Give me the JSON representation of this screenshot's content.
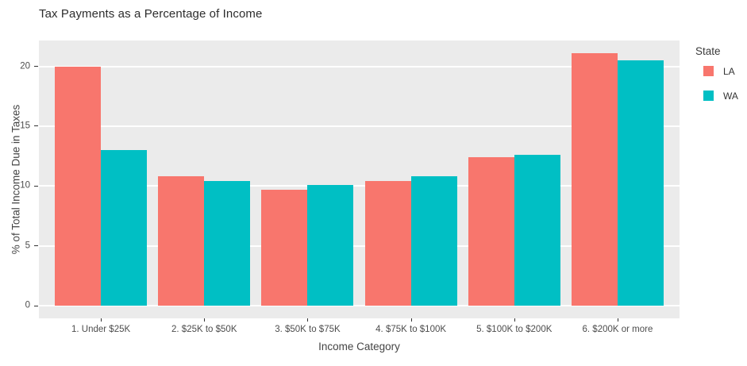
{
  "chart_data": {
    "type": "bar",
    "title": "Tax Payments as a Percentage of Income",
    "xlabel": "Income Category",
    "ylabel": "% of Total Income Due in Taxes",
    "legend_title": "State",
    "legend_position": "right-top",
    "grid": true,
    "panel_bg": "#EBEBEB",
    "grid_color": "#FFFFFF",
    "categories": [
      "1. Under $25K",
      "2. $25K to $50K",
      "3. $50K to $75K",
      "4. $75K to $100K",
      "5. $100K to $200K",
      "6. $200K or more"
    ],
    "series": [
      {
        "name": "LA",
        "color": "#F8766D",
        "values": [
          20.0,
          10.8,
          9.7,
          10.4,
          12.4,
          21.1
        ]
      },
      {
        "name": "WA",
        "color": "#00BFC4",
        "values": [
          13.0,
          10.4,
          10.1,
          10.8,
          12.6,
          20.5
        ]
      }
    ],
    "yticks": [
      0,
      5,
      10,
      15,
      20
    ],
    "ylim": [
      -1.06,
      22.16
    ]
  }
}
